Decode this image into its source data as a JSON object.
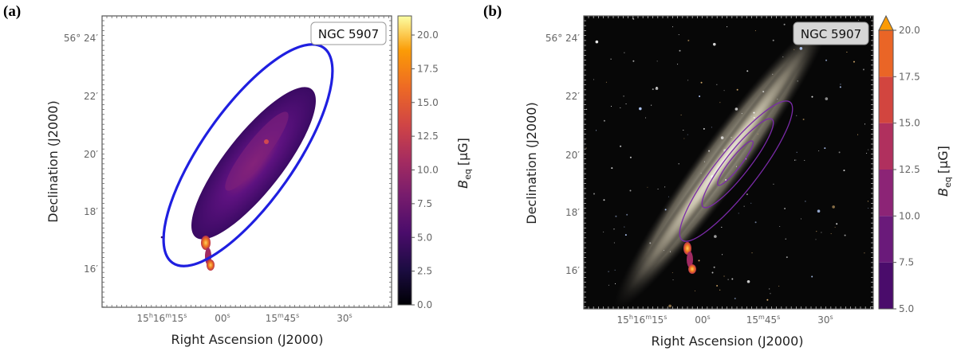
{
  "panels": [
    {
      "label": "(a)",
      "galaxy_label": "NGC 5907",
      "xlabel": "Right Ascension (J2000)",
      "ylabel": "Declination (J2000)",
      "colorbar_label": "B",
      "colorbar_sub": "eq",
      "colorbar_unit": "[μG]",
      "colorbar_ticks": [
        "0.0",
        "2.5",
        "5.0",
        "7.5",
        "10.0",
        "12.5",
        "15.0",
        "17.5",
        "20.0"
      ],
      "ra_ticks": [
        {
          "h": "15",
          "hsup": "h",
          "m": "16",
          "msup": "m",
          "s": "15",
          "ssup": "s"
        },
        {
          "s": "00",
          "ssup": "s"
        },
        {
          "m": "15",
          "msup": "m",
          "s": "45",
          "ssup": "s"
        },
        {
          "s": "30",
          "ssup": "s"
        }
      ],
      "dec_ticks": [
        "56° 24′",
        "22′",
        "20′",
        "18′",
        "16′"
      ]
    },
    {
      "label": "(b)",
      "galaxy_label": "NGC 5907",
      "xlabel": "Right Ascension (J2000)",
      "ylabel": "Declination (J2000)",
      "colorbar_label": "B",
      "colorbar_sub": "eq",
      "colorbar_unit": "[μG]",
      "colorbar_ticks": [
        "5.0",
        "7.5",
        "10.0",
        "12.5",
        "15.0",
        "17.5",
        "20.0"
      ],
      "ra_ticks": [
        {
          "h": "15",
          "hsup": "h",
          "m": "16",
          "msup": "m",
          "s": "15",
          "ssup": "s"
        },
        {
          "s": "00",
          "ssup": "s"
        },
        {
          "m": "15",
          "msup": "m",
          "s": "45",
          "ssup": "s"
        },
        {
          "s": "30",
          "ssup": "s"
        }
      ],
      "dec_ticks": [
        "56° 24′",
        "22′",
        "20′",
        "18′",
        "16′"
      ]
    }
  ],
  "colors": {
    "ellipse": "#1f1fe0",
    "contour": "#7a2aa8",
    "sky": "#070707"
  }
}
